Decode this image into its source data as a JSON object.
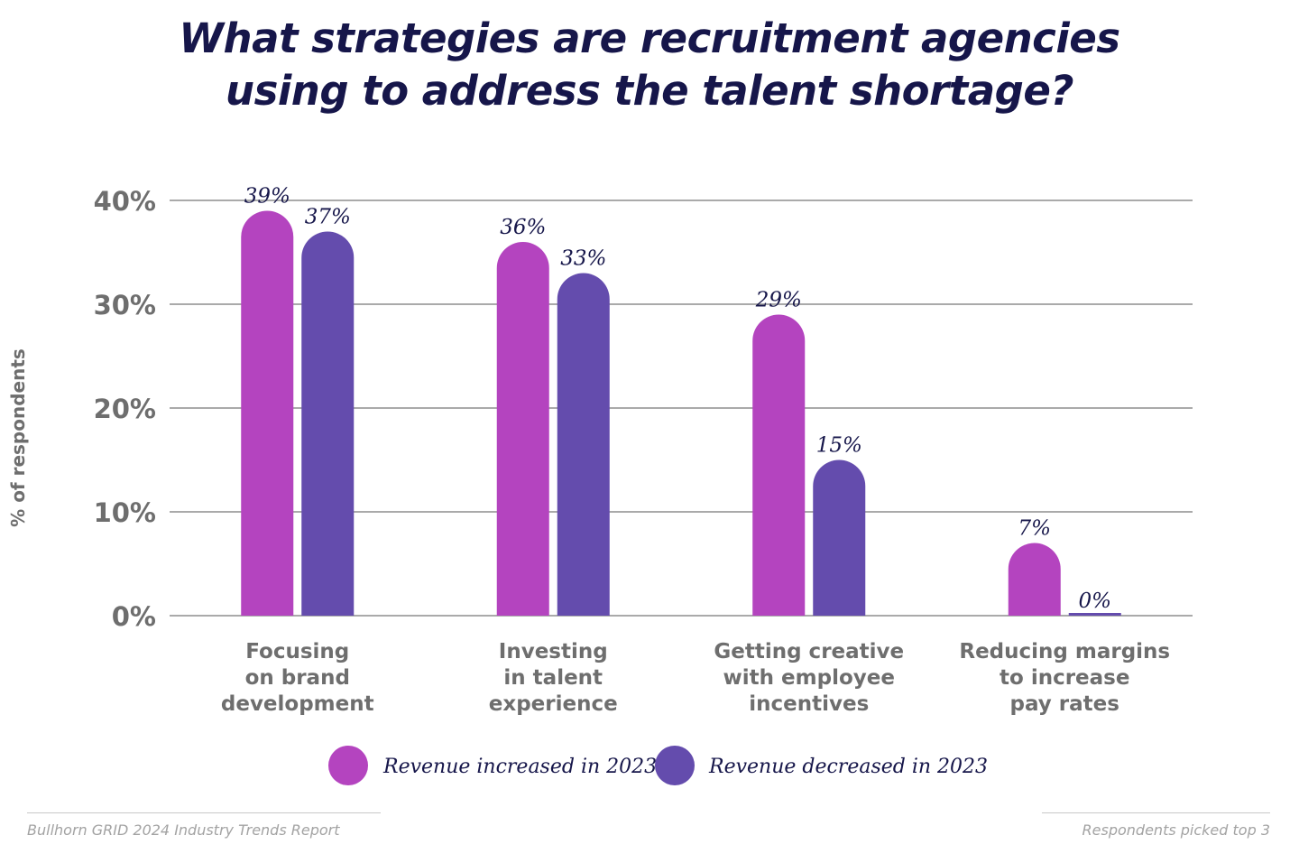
{
  "title_line1": "What strategies are recruitment agencies",
  "title_line2": "using to address the talent shortage?",
  "source": "Bullhorn GRID 2024 Industry Trends Report",
  "note": "Respondents picked top 3",
  "chart_data": {
    "type": "bar",
    "ylabel": "% of respondents",
    "ylim": [
      0,
      40
    ],
    "yticks": [
      0,
      10,
      20,
      30,
      40
    ],
    "yticklabels": [
      "0%",
      "10%",
      "20%",
      "30%",
      "40%"
    ],
    "grid": true,
    "legend_position": "bottom",
    "categories": [
      [
        "Focusing",
        "on brand",
        "development"
      ],
      [
        "Investing",
        "in talent",
        "experience"
      ],
      [
        "Getting creative",
        "with employee",
        "incentives"
      ],
      [
        "Reducing margins",
        "to increase",
        "pay rates"
      ]
    ],
    "series": [
      {
        "name": "Revenue increased in 2023",
        "color": "#b444bf",
        "values": [
          39,
          36,
          29,
          7
        ],
        "labels": [
          "39%",
          "36%",
          "29%",
          "7%"
        ]
      },
      {
        "name": "Revenue decreased in 2023",
        "color": "#644cad",
        "values": [
          37,
          33,
          15,
          0
        ],
        "labels": [
          "37%",
          "33%",
          "15%",
          "0%"
        ]
      }
    ]
  }
}
